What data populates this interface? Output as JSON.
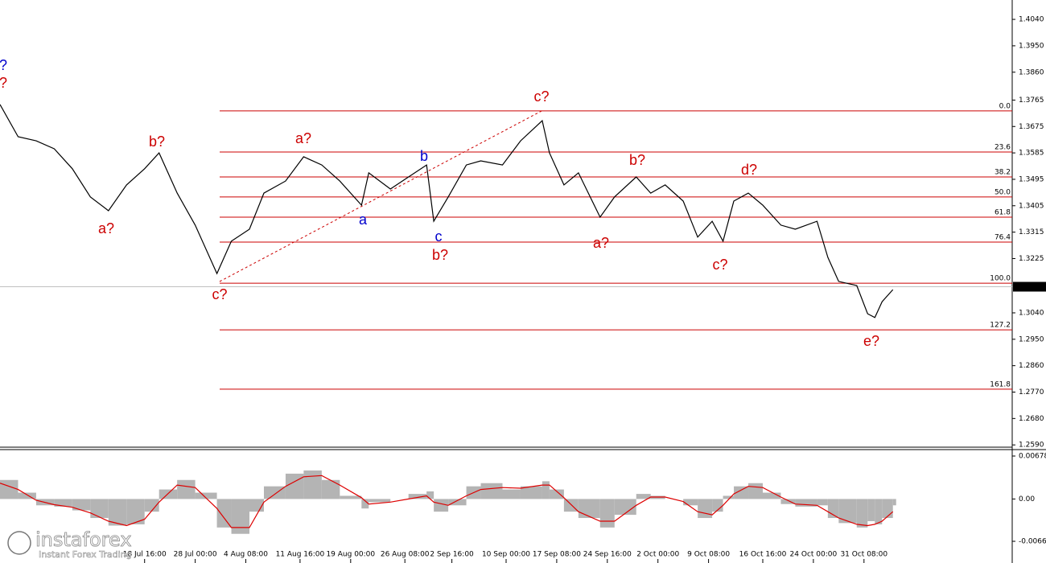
{
  "chart_data": [
    {
      "type": "line",
      "color": "#000000",
      "x": [
        0,
        5,
        10,
        15,
        20,
        25,
        30,
        35,
        40,
        44,
        49,
        54,
        60,
        64,
        69,
        73,
        79,
        84,
        89,
        94,
        100,
        102,
        108,
        113,
        118,
        120,
        124,
        129,
        133,
        139,
        144,
        150,
        152,
        156,
        160,
        166,
        170,
        176,
        180,
        184,
        189,
        193,
        197,
        200,
        203,
        207,
        211,
        216,
        220,
        226,
        229,
        232,
        237,
        240,
        242,
        244,
        247
      ],
      "values": [
        1.375,
        1.364,
        1.3626,
        1.3599,
        1.3531,
        1.3435,
        1.3388,
        1.3476,
        1.3531,
        1.3585,
        1.3448,
        1.3339,
        1.3174,
        1.3284,
        1.3325,
        1.3448,
        1.3489,
        1.3572,
        1.3544,
        1.3489,
        1.3407,
        1.3517,
        1.3462,
        1.3503,
        1.3544,
        1.3352,
        1.3435,
        1.3544,
        1.3558,
        1.3544,
        1.3626,
        1.3695,
        1.3585,
        1.3476,
        1.3517,
        1.3366,
        1.3435,
        1.3503,
        1.3448,
        1.3476,
        1.3421,
        1.3298,
        1.3352,
        1.3284,
        1.3421,
        1.3448,
        1.3407,
        1.3339,
        1.3325,
        1.3352,
        1.3229,
        1.3147,
        1.3133,
        1.3037,
        1.3024,
        1.3078,
        1.3119
      ],
      "xlim": [
        0,
        280
      ],
      "xticks": [
        {
          "value": 40,
          "label": "18 Jul 16:00"
        },
        {
          "value": 54,
          "label": "28 Jul 00:00"
        },
        {
          "value": 68,
          "label": "4 Aug 08:00"
        },
        {
          "value": 83,
          "label": "11 Aug 16:00"
        },
        {
          "value": 97,
          "label": "19 Aug 00:00"
        },
        {
          "value": 112,
          "label": "26 Aug 08:00"
        },
        {
          "value": 125,
          "label": "2 Sep 16:00"
        },
        {
          "value": 140,
          "label": "10 Sep 00:00"
        },
        {
          "value": 154,
          "label": "17 Sep 08:00"
        },
        {
          "value": 168,
          "label": "24 Sep 16:00"
        },
        {
          "value": 182,
          "label": "2 Oct 00:00"
        },
        {
          "value": 196,
          "label": "9 Oct 08:00"
        },
        {
          "value": 211,
          "label": "16 Oct 16:00"
        },
        {
          "value": 225,
          "label": "24 Oct 00:00"
        },
        {
          "value": 239,
          "label": "31 Oct 08:00"
        }
      ],
      "ylim": [
        1.2585,
        1.4106
      ],
      "yticks": [
        {
          "value": 1.404,
          "label": "1.4040"
        },
        {
          "value": 1.395,
          "label": "1.3950"
        },
        {
          "value": 1.386,
          "label": "1.3860"
        },
        {
          "value": 1.3765,
          "label": "1.3765"
        },
        {
          "value": 1.3675,
          "label": "1.3675"
        },
        {
          "value": 1.3585,
          "label": "1.3585"
        },
        {
          "value": 1.3495,
          "label": "1.3495"
        },
        {
          "value": 1.3405,
          "label": "1.3405"
        },
        {
          "value": 1.3315,
          "label": "1.3315"
        },
        {
          "value": 1.3225,
          "label": "1.3225"
        },
        {
          "value": 1.304,
          "label": "1.3040"
        },
        {
          "value": 1.295,
          "label": "1.2950"
        },
        {
          "value": 1.286,
          "label": "1.2860"
        },
        {
          "value": 1.277,
          "label": "1.2770"
        },
        {
          "value": 1.268,
          "label": "1.2680"
        },
        {
          "value": 1.259,
          "label": "1.2590"
        }
      ],
      "last_price": 1.3129,
      "levels_color": "#cc0000",
      "levels": [
        {
          "label": "0.0",
          "value": 1.3728
        },
        {
          "label": "23.6",
          "value": 1.3588
        },
        {
          "label": "38.2",
          "value": 1.3503
        },
        {
          "label": "50.0",
          "value": 1.3435
        },
        {
          "label": "61.8",
          "value": 1.3366
        },
        {
          "label": "76.4",
          "value": 1.3281
        },
        {
          "label": "100.0",
          "value": 1.3141
        },
        {
          "label": "127.2",
          "value": 1.2982
        },
        {
          "label": "161.8",
          "value": 1.278
        }
      ],
      "annotations": [
        {
          "text": "?",
          "color": "#0000cc"
        },
        {
          "text": "?",
          "color": "#cc0000"
        },
        {
          "text": "b?",
          "color": "#cc0000"
        },
        {
          "text": "a?",
          "color": "#cc0000"
        },
        {
          "text": "c?",
          "color": "#cc0000"
        },
        {
          "text": "a?",
          "color": "#cc0000"
        },
        {
          "text": "a",
          "color": "#0000cc"
        },
        {
          "text": "b",
          "color": "#0000cc"
        },
        {
          "text": "c",
          "color": "#0000cc"
        },
        {
          "text": "b?",
          "color": "#cc0000"
        },
        {
          "text": "c?",
          "color": "#cc0000"
        },
        {
          "text": "b?",
          "color": "#cc0000"
        },
        {
          "text": "a?",
          "color": "#cc0000"
        },
        {
          "text": "d?",
          "color": "#cc0000"
        },
        {
          "text": "c?",
          "color": "#cc0000"
        },
        {
          "text": "e?",
          "color": "#cc0000"
        }
      ]
    },
    {
      "type": "macd",
      "x": [
        0,
        5,
        10,
        15,
        20,
        25,
        30,
        35,
        40,
        44,
        49,
        54,
        60,
        64,
        69,
        73,
        79,
        84,
        89,
        94,
        100,
        102,
        108,
        113,
        118,
        120,
        124,
        129,
        133,
        139,
        144,
        150,
        152,
        156,
        160,
        166,
        170,
        176,
        180,
        184,
        189,
        193,
        197,
        200,
        203,
        207,
        211,
        216,
        220,
        226,
        229,
        232,
        237,
        240,
        242,
        244,
        247
      ],
      "series": [
        {
          "color": "#b4b4b4",
          "values": [
            0.003,
            0.001,
            -0.001,
            -0.0012,
            -0.0018,
            -0.003,
            -0.0042,
            -0.004,
            -0.002,
            0.0015,
            0.003,
            0.001,
            -0.0045,
            -0.0055,
            -0.002,
            0.002,
            0.004,
            0.0045,
            0.003,
            0.0005,
            -0.0015,
            -0.0005,
            0,
            0.0008,
            0.0012,
            -0.002,
            -0.001,
            0.002,
            0.0025,
            0.0015,
            0.002,
            0.0028,
            0.0015,
            -0.002,
            -0.003,
            -0.0045,
            -0.0025,
            0.0008,
            0.0005,
            0,
            -0.001,
            -0.003,
            -0.002,
            0.0005,
            0.002,
            0.0025,
            0.001,
            -0.0008,
            -0.0012,
            -0.001,
            -0.003,
            -0.0038,
            -0.0045,
            -0.0035,
            -0.004,
            -0.003,
            -0.001
          ]
        },
        {
          "color": "#dd0000",
          "values": [
            0.0025,
            0.0015,
            -0.0002,
            -0.0009,
            -0.0013,
            -0.0022,
            -0.0035,
            -0.0042,
            -0.0032,
            -0.0005,
            0.0022,
            0.0018,
            -0.0015,
            -0.0045,
            -0.0045,
            -0.0005,
            0.002,
            0.0035,
            0.0037,
            0.0022,
            0.0002,
            -0.0008,
            -0.0005,
            0,
            0.0005,
            -0.0005,
            -0.001,
            0.0005,
            0.0015,
            0.0018,
            0.0017,
            0.0022,
            0.0022,
            0.0002,
            -0.002,
            -0.0035,
            -0.0035,
            -0.001,
            0.0003,
            0.0003,
            -0.0004,
            -0.002,
            -0.0025,
            -0.001,
            0.0008,
            0.002,
            0.0018,
            0.0003,
            -0.0008,
            -0.001,
            -0.002,
            -0.003,
            -0.004,
            -0.0042,
            -0.004,
            -0.0035,
            -0.002
          ]
        }
      ],
      "xlim": [
        0,
        280
      ],
      "ylim": [
        -0.00947,
        0.00767
      ],
      "yticks": [
        0.00678,
        {
          "value": 0,
          "label": "0.00"
        },
        -0.00668
      ]
    }
  ],
  "branding": {
    "name": "instaforex",
    "tagline": "Instant Forex Trading"
  }
}
